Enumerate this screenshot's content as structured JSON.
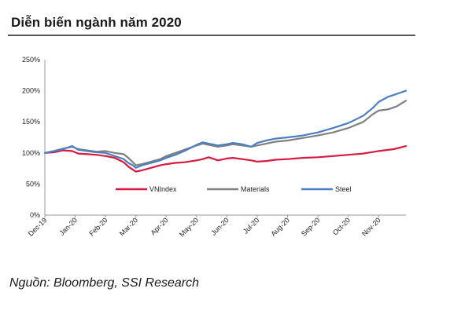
{
  "title": "Diễn biến ngành năm 2020",
  "source": "Nguồn: Bloomberg, SSI Research",
  "chart_data": {
    "type": "line",
    "title": "Diễn biến ngành năm 2020",
    "x_tick_labels": [
      "Dec-19",
      "Jan-20",
      "Feb-20",
      "Mar-20",
      "Apr-20",
      "May-20",
      "Jun-20",
      "Jul-20",
      "Aug-20",
      "Sep-20",
      "Oct-20",
      "Nov-20"
    ],
    "y_tick_labels": [
      "0%",
      "50%",
      "100%",
      "150%",
      "200%",
      "250%"
    ],
    "ylim": [
      0,
      250
    ],
    "y_unit": "%",
    "x_range": [
      0,
      11.9
    ],
    "grid": false,
    "legend_position": "bottom-center",
    "series": [
      {
        "name": "VNIndex",
        "color": "#d7193f",
        "x": [
          0,
          0.3,
          0.6,
          0.9,
          1.1,
          1.4,
          1.7,
          2.0,
          2.3,
          2.6,
          2.75,
          2.9,
          3.0,
          3.2,
          3.5,
          3.8,
          4.0,
          4.3,
          4.6,
          5.0,
          5.2,
          5.4,
          5.7,
          6.0,
          6.2,
          6.5,
          6.8,
          7.0,
          7.3,
          7.6,
          8.0,
          8.5,
          9.0,
          9.5,
          10.0,
          10.5,
          11.0,
          11.5,
          11.9
        ],
        "values": [
          100,
          101,
          104,
          103,
          99,
          98,
          97,
          95,
          92,
          85,
          78,
          73,
          70,
          72,
          76,
          80,
          82,
          84,
          85,
          88,
          90,
          93,
          88,
          91,
          92,
          90,
          88,
          86,
          87,
          89,
          90,
          92,
          93,
          95,
          97,
          99,
          103,
          106,
          111
        ]
      },
      {
        "name": "Materials",
        "color": "#808080",
        "x": [
          0,
          0.3,
          0.6,
          0.9,
          1.1,
          1.4,
          1.7,
          2.0,
          2.3,
          2.6,
          2.75,
          2.9,
          3.0,
          3.2,
          3.5,
          3.8,
          4.0,
          4.3,
          4.6,
          5.0,
          5.2,
          5.4,
          5.7,
          6.0,
          6.2,
          6.5,
          6.8,
          7.0,
          7.3,
          7.6,
          8.0,
          8.5,
          9.0,
          9.5,
          10.0,
          10.5,
          10.8,
          11.0,
          11.3,
          11.6,
          11.9
        ],
        "values": [
          100,
          103,
          107,
          110,
          106,
          104,
          102,
          103,
          100,
          98,
          92,
          85,
          80,
          82,
          86,
          90,
          95,
          100,
          105,
          112,
          115,
          113,
          110,
          112,
          114,
          112,
          110,
          112,
          115,
          118,
          120,
          124,
          128,
          133,
          140,
          150,
          162,
          168,
          170,
          175,
          184
        ]
      },
      {
        "name": "Steel",
        "color": "#4a7ec0",
        "x": [
          0,
          0.3,
          0.6,
          0.9,
          1.1,
          1.4,
          1.7,
          2.0,
          2.3,
          2.6,
          2.75,
          2.9,
          3.0,
          3.2,
          3.5,
          3.8,
          4.0,
          4.3,
          4.6,
          5.0,
          5.2,
          5.4,
          5.7,
          6.0,
          6.2,
          6.5,
          6.8,
          7.0,
          7.3,
          7.6,
          8.0,
          8.5,
          9.0,
          9.5,
          10.0,
          10.5,
          10.8,
          11.0,
          11.3,
          11.6,
          11.9
        ],
        "values": [
          100,
          103,
          106,
          111,
          105,
          103,
          101,
          100,
          95,
          90,
          84,
          80,
          76,
          80,
          84,
          88,
          92,
          97,
          103,
          113,
          117,
          115,
          112,
          114,
          116,
          114,
          110,
          116,
          120,
          123,
          125,
          128,
          133,
          140,
          148,
          160,
          172,
          182,
          190,
          195,
          200
        ]
      }
    ]
  }
}
